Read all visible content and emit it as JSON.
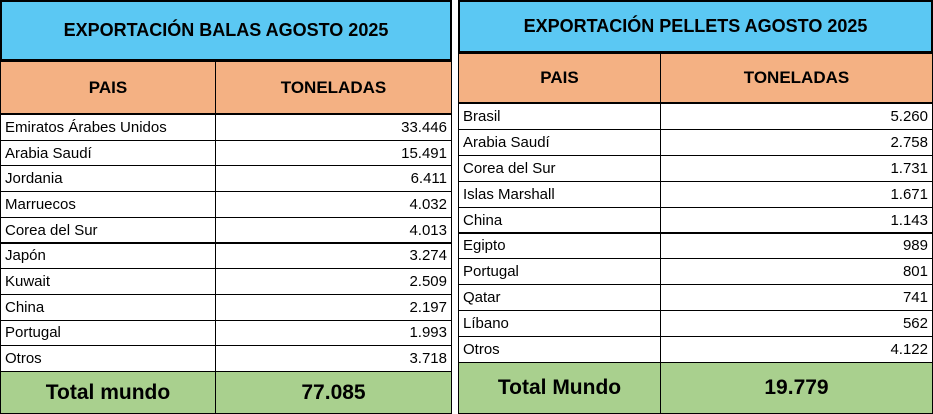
{
  "tables": [
    {
      "title": "EXPORTACIÓN BALAS AGOSTO 2025",
      "columns": [
        "PAIS",
        "TONELADAS"
      ],
      "rows": [
        [
          "Emiratos Árabes Unidos",
          "33.446"
        ],
        [
          "Arabia Saudí",
          "15.491"
        ],
        [
          "Jordania",
          "6.411"
        ],
        [
          "Marruecos",
          "4.032"
        ],
        [
          "Corea del Sur",
          "4.013"
        ],
        [
          "Japón",
          "3.274"
        ],
        [
          "Kuwait",
          "2.509"
        ],
        [
          "China",
          "2.197"
        ],
        [
          "Portugal",
          "1.993"
        ],
        [
          "Otros",
          "3.718"
        ]
      ],
      "total": [
        "Total mundo",
        "77.085"
      ]
    },
    {
      "title": "EXPORTACIÓN PELLETS AGOSTO 2025",
      "columns": [
        "PAIS",
        "TONELADAS"
      ],
      "rows": [
        [
          "Brasil",
          "5.260"
        ],
        [
          "Arabia Saudí",
          "2.758"
        ],
        [
          "Corea del Sur",
          "1.731"
        ],
        [
          "Islas Marshall",
          "1.671"
        ],
        [
          "China",
          "1.143"
        ],
        [
          "Egipto",
          "989"
        ],
        [
          "Portugal",
          "801"
        ],
        [
          "Qatar",
          "741"
        ],
        [
          "Líbano",
          "562"
        ],
        [
          "Otros",
          "4.122"
        ]
      ],
      "total": [
        "Total Mundo",
        "19.779"
      ]
    }
  ]
}
